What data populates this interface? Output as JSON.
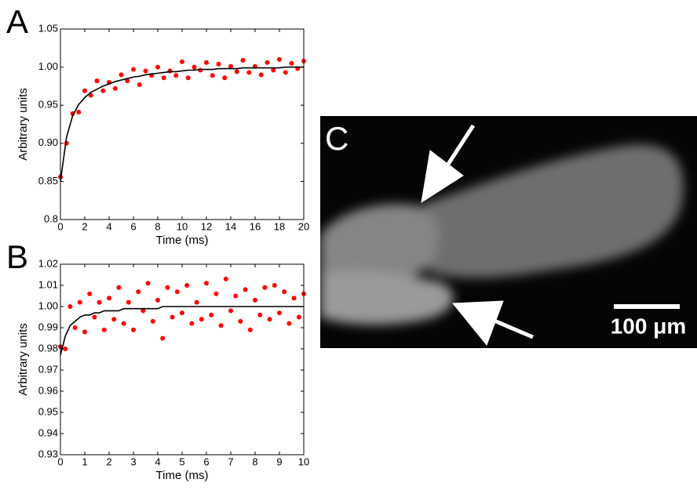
{
  "chart_data": [
    {
      "type": "scatter",
      "panel_label": "A",
      "x_label": "Time (ms)",
      "y_label": "Arbitrary units",
      "x": [
        0,
        0.5,
        1,
        1.5,
        2,
        2.5,
        3,
        3.5,
        4,
        4.5,
        5,
        5.5,
        6,
        6.5,
        7,
        7.5,
        8,
        8.5,
        9,
        9.5,
        10,
        10.5,
        11,
        11.5,
        12,
        12.5,
        13,
        13.5,
        14,
        14.5,
        15,
        15.5,
        16,
        16.5,
        17,
        17.5,
        18,
        18.5,
        19,
        19.5,
        20
      ],
      "series": [
        {
          "mode": "markers",
          "color": "#ff0000",
          "values": [
            0.856,
            0.9,
            0.939,
            0.941,
            0.969,
            0.963,
            0.982,
            0.969,
            0.98,
            0.972,
            0.99,
            0.982,
            0.997,
            0.977,
            0.995,
            0.989,
            1.0,
            0.986,
            0.995,
            0.989,
            1.007,
            0.986,
            1.0,
            0.996,
            1.006,
            0.989,
            1.004,
            0.986,
            1.001,
            0.994,
            1.009,
            0.993,
            1.001,
            0.99,
            1.006,
            0.996,
            1.01,
            0.993,
            1.005,
            0.998,
            1.008
          ]
        },
        {
          "mode": "line",
          "color": "#000000",
          "values": [
            0.85,
            0.908,
            0.936,
            0.951,
            0.96,
            0.967,
            0.971,
            0.975,
            0.978,
            0.981,
            0.983,
            0.985,
            0.987,
            0.988,
            0.99,
            0.991,
            0.992,
            0.993,
            0.994,
            0.994,
            0.995,
            0.996,
            0.996,
            0.997,
            0.997,
            0.997,
            0.998,
            0.998,
            0.998,
            0.998,
            0.999,
            0.999,
            0.999,
            0.999,
            0.999,
            0.999,
            0.999,
            1.0,
            1.0,
            1.0,
            1.0
          ]
        }
      ],
      "xlim": [
        0,
        20
      ],
      "xticks": [
        0,
        2,
        4,
        6,
        8,
        10,
        12,
        14,
        16,
        18,
        20
      ],
      "ylim": [
        0.8,
        1.05
      ],
      "yticks": [
        0.8,
        0.85,
        {
          "value": 0.9,
          "label": "0.90"
        },
        0.95,
        {
          "value": 1.0,
          "label": "1.00"
        },
        1.05
      ]
    },
    {
      "type": "scatter",
      "panel_label": "B",
      "x_label": "Time (ms)",
      "y_label": "Arbitrary units",
      "x": [
        0,
        0.2,
        0.4,
        0.6,
        0.8,
        1,
        1.2,
        1.4,
        1.6,
        1.8,
        2,
        2.2,
        2.4,
        2.6,
        2.8,
        3,
        3.2,
        3.4,
        3.6,
        3.8,
        4,
        4.2,
        4.4,
        4.6,
        4.8,
        5,
        5.2,
        5.4,
        5.6,
        5.8,
        6,
        6.2,
        6.4,
        6.6,
        6.8,
        7,
        7.2,
        7.4,
        7.6,
        7.8,
        8,
        8.2,
        8.4,
        8.6,
        8.8,
        9,
        9.2,
        9.4,
        9.6,
        9.8,
        10
      ],
      "series": [
        {
          "mode": "markers",
          "color": "#ff0000",
          "values": [
            0.981,
            0.98,
            1.0,
            0.99,
            1.002,
            0.988,
            1.006,
            0.995,
            1.002,
            0.989,
            1.004,
            0.994,
            1.009,
            0.992,
            1.002,
            0.989,
            1.007,
            0.998,
            1.011,
            0.993,
            1.003,
            0.985,
            1.009,
            0.995,
            1.007,
            0.997,
            1.01,
            0.992,
            1.002,
            0.994,
            1.011,
            0.996,
            1.006,
            0.991,
            1.013,
            0.998,
            1.005,
            0.993,
            1.008,
            0.989,
            1.003,
            0.996,
            1.009,
            0.994,
            1.01,
            0.997,
            1.007,
            0.992,
            1.004,
            0.995,
            1.006
          ]
        },
        {
          "mode": "line",
          "color": "#000000",
          "values": [
            0.977,
            0.986,
            0.991,
            0.993,
            0.995,
            0.996,
            0.996,
            0.997,
            0.997,
            0.998,
            0.998,
            0.998,
            0.998,
            0.999,
            0.999,
            0.999,
            0.999,
            0.999,
            0.999,
            0.999,
            0.999,
            1.0,
            1.0,
            1.0,
            1.0,
            1.0,
            1.0,
            1.0,
            1.0,
            1.0,
            1.0,
            1.0,
            1.0,
            1.0,
            1.0,
            1.0,
            1.0,
            1.0,
            1.0,
            1.0,
            1.0,
            1.0,
            1.0,
            1.0,
            1.0,
            1.0,
            1.0,
            1.0,
            1.0,
            1.0,
            1.0
          ]
        }
      ],
      "xlim": [
        0,
        10
      ],
      "xticks": [
        0,
        1,
        2,
        3,
        4,
        5,
        6,
        7,
        8,
        9,
        10
      ],
      "ylim": [
        0.93,
        1.02
      ],
      "yticks": [
        0.93,
        0.94,
        0.95,
        0.96,
        0.97,
        0.98,
        0.99,
        {
          "value": 1.0,
          "label": "1.00"
        },
        1.01,
        1.02
      ]
    }
  ],
  "image": {
    "panel_label": "C",
    "scale_bar_label": "100 μm"
  }
}
